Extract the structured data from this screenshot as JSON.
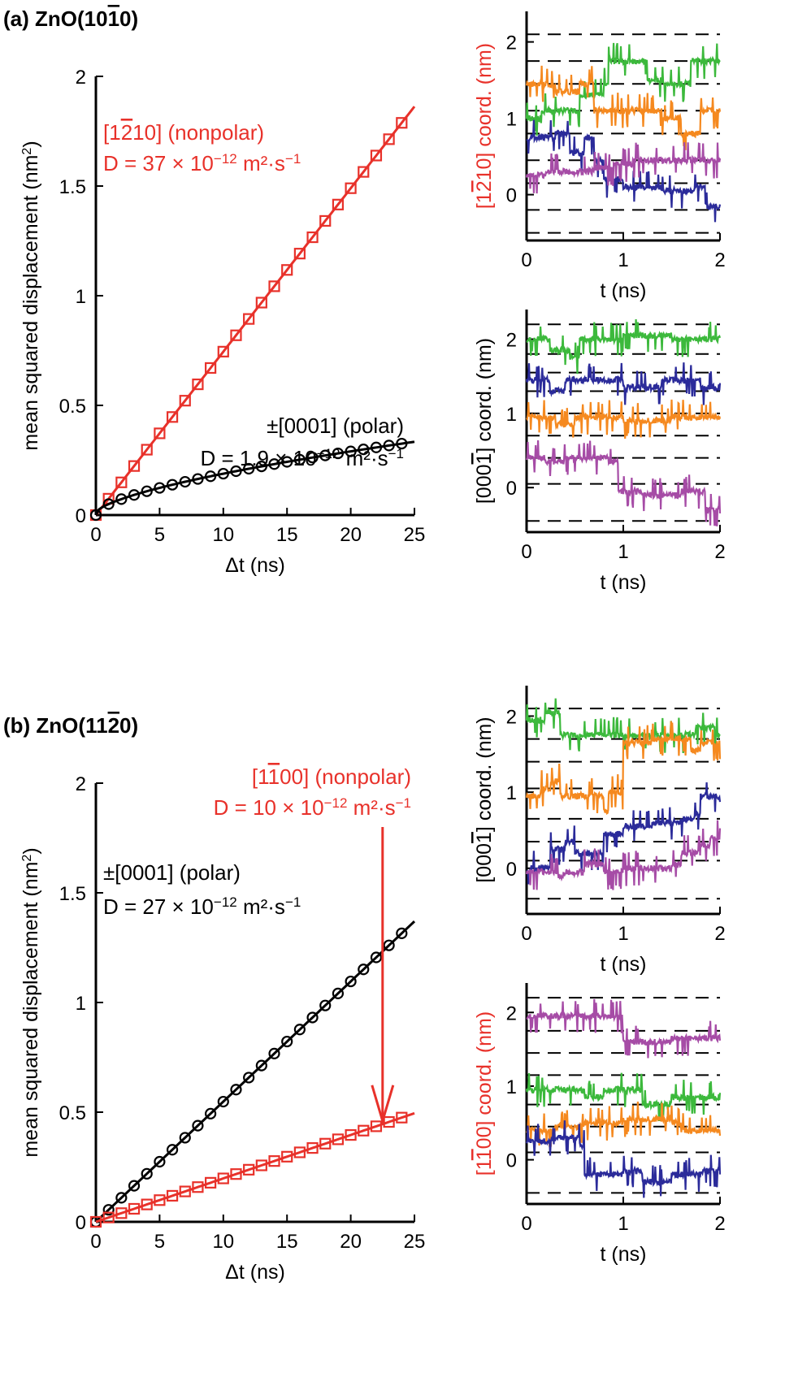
{
  "colors": {
    "red": "#e8312a",
    "black": "#000000",
    "green": "#3cb93c",
    "orange": "#f5891f",
    "navy": "#2b2b9a",
    "purple": "#a64ca6"
  },
  "panel_a": {
    "label": "(a) ZnO(10",
    "label_bar": "1",
    "label_tail": "0)"
  },
  "panel_b": {
    "label": "(b) ZnO(11",
    "label_bar": "2",
    "label_tail": "0)"
  },
  "chart_data": [
    {
      "id": "a-msd",
      "type": "line",
      "xlabel": "Δt (ns)",
      "ylabel": "mean squared displacement (nm²)",
      "xlim": [
        0,
        25
      ],
      "ylim": [
        0,
        2
      ],
      "xticks": [
        0,
        5,
        10,
        15,
        20,
        25
      ],
      "yticks": [
        0,
        0.5,
        1,
        1.5,
        2
      ],
      "series": [
        {
          "name": "[1-210] (nonpolar)",
          "color": "red",
          "marker": "square",
          "slope": 0.0745,
          "intercept": 0.0,
          "fit_end": 25,
          "marker_x": [
            0,
            1,
            2,
            3,
            4,
            5,
            6,
            7,
            8,
            9,
            10,
            11,
            12,
            13,
            14,
            15,
            16,
            17,
            18,
            19,
            20,
            21,
            22,
            23,
            24
          ]
        },
        {
          "name": "±[0001] (polar)",
          "color": "black",
          "marker": "circle",
          "fit": "sqrt",
          "amp": 0.025,
          "marker_x": [
            0,
            1,
            2,
            3,
            4,
            5,
            6,
            7,
            8,
            9,
            10,
            11,
            12,
            13,
            14,
            15,
            16,
            17,
            18,
            19,
            20,
            21,
            22,
            23,
            24
          ]
        }
      ],
      "annotations": [
        {
          "lines": [
            "[1",
            "2",
            "10] (nonpolar)"
          ],
          "color": "red"
        },
        {
          "text": "D = 37 × 10",
          "sup": "−12",
          "tail": " m²·s",
          "sup2": "−1",
          "color": "red"
        },
        {
          "text": "±[0001] (polar)",
          "color": "black"
        },
        {
          "text": "D = 1.9 × 10",
          "sup": "−12",
          "tail": " m²·s",
          "sup2": "−1",
          "color": "black"
        }
      ]
    },
    {
      "id": "a-traj-top",
      "type": "line",
      "xlabel": "t (ns)",
      "ylabel": "[1-210] coord. (nm)",
      "ylabel_color": "red",
      "xlim": [
        0,
        2
      ],
      "ylim": [
        -0.6,
        2.4
      ],
      "xticks": [
        0,
        1,
        2
      ],
      "yticks": [
        0,
        1,
        2
      ],
      "dashed_levels": [
        -0.5,
        -0.2,
        0.15,
        0.45,
        0.8,
        1.1,
        1.45,
        1.75,
        2.1
      ],
      "series": [
        {
          "name": "green",
          "color": "green",
          "steps": [
            [
              0,
              1.0
            ],
            [
              0.15,
              1.1
            ],
            [
              0.55,
              1.3
            ],
            [
              0.8,
              1.45
            ],
            [
              0.85,
              1.75
            ],
            [
              1.25,
              1.5
            ],
            [
              1.4,
              1.45
            ],
            [
              1.7,
              1.75
            ],
            [
              2,
              1.75
            ]
          ]
        },
        {
          "name": "orange",
          "color": "orange",
          "steps": [
            [
              0,
              1.45
            ],
            [
              0.3,
              1.35
            ],
            [
              0.55,
              1.45
            ],
            [
              0.7,
              1.1
            ],
            [
              0.85,
              1.1
            ],
            [
              1.2,
              1.1
            ],
            [
              1.4,
              1.0
            ],
            [
              1.6,
              0.8
            ],
            [
              1.8,
              1.1
            ],
            [
              2,
              1.1
            ]
          ]
        },
        {
          "name": "navy",
          "color": "navy",
          "steps": [
            [
              0,
              0.75
            ],
            [
              0.3,
              0.8
            ],
            [
              0.45,
              0.55
            ],
            [
              0.6,
              0.75
            ],
            [
              0.7,
              0.45
            ],
            [
              0.8,
              0.2
            ],
            [
              1.0,
              0.1
            ],
            [
              1.2,
              0.1
            ],
            [
              1.4,
              0.05
            ],
            [
              1.75,
              0.1
            ],
            [
              1.85,
              -0.15
            ],
            [
              2,
              -0.1
            ]
          ]
        },
        {
          "name": "purple",
          "color": "purple",
          "steps": [
            [
              0,
              0.25
            ],
            [
              0.2,
              0.3
            ],
            [
              0.5,
              0.3
            ],
            [
              0.7,
              0.35
            ],
            [
              0.9,
              0.4
            ],
            [
              1.1,
              0.45
            ],
            [
              1.5,
              0.45
            ],
            [
              2,
              0.45
            ]
          ]
        }
      ]
    },
    {
      "id": "a-traj-bottom",
      "type": "line",
      "xlabel": "t (ns)",
      "ylabel": "[000-1] coord. (nm)",
      "ylabel_color": "black",
      "xlim": [
        0,
        2
      ],
      "ylim": [
        -0.6,
        2.4
      ],
      "xticks": [
        0,
        1,
        2
      ],
      "yticks": [
        0,
        1,
        2
      ],
      "dashed_levels": [
        -0.45,
        0.05,
        0.4,
        0.7,
        1.0,
        1.3,
        1.55,
        1.8,
        2.2
      ],
      "series": [
        {
          "name": "green",
          "color": "green",
          "steps": [
            [
              0,
              2.0
            ],
            [
              0.25,
              1.85
            ],
            [
              0.45,
              1.75
            ],
            [
              0.55,
              2.0
            ],
            [
              1.0,
              2.05
            ],
            [
              1.5,
              2.0
            ],
            [
              2,
              2.0
            ]
          ]
        },
        {
          "name": "navy",
          "color": "navy",
          "steps": [
            [
              0,
              1.45
            ],
            [
              0.25,
              1.3
            ],
            [
              0.4,
              1.45
            ],
            [
              1.0,
              1.35
            ],
            [
              1.4,
              1.45
            ],
            [
              1.8,
              1.35
            ],
            [
              2,
              1.4
            ]
          ]
        },
        {
          "name": "orange",
          "color": "orange",
          "steps": [
            [
              0,
              0.95
            ],
            [
              0.3,
              0.85
            ],
            [
              0.5,
              0.95
            ],
            [
              1.0,
              0.9
            ],
            [
              1.5,
              0.95
            ],
            [
              2,
              0.95
            ]
          ]
        },
        {
          "name": "purple",
          "color": "purple",
          "steps": [
            [
              0,
              0.4
            ],
            [
              0.2,
              0.35
            ],
            [
              0.4,
              0.4
            ],
            [
              0.85,
              0.35
            ],
            [
              0.95,
              -0.05
            ],
            [
              1.2,
              -0.1
            ],
            [
              1.6,
              -0.05
            ],
            [
              1.85,
              -0.3
            ],
            [
              2,
              -0.35
            ]
          ]
        }
      ]
    },
    {
      "id": "b-msd",
      "type": "line",
      "xlabel": "Δt (ns)",
      "ylabel": "mean squared displacement (nm²)",
      "xlim": [
        0,
        25
      ],
      "ylim": [
        0,
        2
      ],
      "xticks": [
        0,
        5,
        10,
        15,
        20,
        25
      ],
      "yticks": [
        0,
        0.5,
        1,
        1.5,
        2
      ],
      "series": [
        {
          "name": "±[0001] (polar)",
          "color": "black",
          "marker": "circle",
          "slope": 0.0548,
          "intercept": 0.0,
          "fit_end": 25,
          "marker_x": [
            0,
            1,
            2,
            3,
            4,
            5,
            6,
            7,
            8,
            9,
            10,
            11,
            12,
            13,
            14,
            15,
            16,
            17,
            18,
            19,
            20,
            21,
            22,
            23,
            24
          ]
        },
        {
          "name": "[1-100] (nonpolar)",
          "color": "red",
          "marker": "square",
          "slope": 0.0198,
          "intercept": 0.0,
          "fit_end": 25,
          "marker_x": [
            0,
            1,
            2,
            3,
            4,
            5,
            6,
            7,
            8,
            9,
            10,
            11,
            12,
            13,
            14,
            15,
            16,
            17,
            18,
            19,
            20,
            21,
            22,
            23,
            24
          ]
        }
      ],
      "annotations": [
        {
          "lines": [
            "[1",
            "1",
            "00] (nonpolar)"
          ],
          "color": "red"
        },
        {
          "text": "D = 10 × 10",
          "sup": "−12",
          "tail": " m²·s",
          "sup2": "−1",
          "color": "red"
        },
        {
          "text": "±[0001] (polar)",
          "color": "black"
        },
        {
          "text": "D = 27 × 10",
          "sup": "−12",
          "tail": " m²·s",
          "sup2": "−1",
          "color": "black"
        }
      ],
      "arrow": {
        "x": 22.5,
        "y_from": 1.8,
        "y_to": 0.46
      }
    },
    {
      "id": "b-traj-top",
      "type": "line",
      "xlabel": "t (ns)",
      "ylabel": "[000-1] coord. (nm)",
      "ylabel_color": "black",
      "xlim": [
        0,
        2
      ],
      "ylim": [
        -0.6,
        2.4
      ],
      "xticks": [
        0,
        1,
        2
      ],
      "yticks": [
        0,
        1,
        2
      ],
      "dashed_levels": [
        -0.4,
        0.1,
        0.35,
        0.65,
        1.05,
        1.4,
        1.7,
        2.1
      ],
      "series": [
        {
          "name": "green",
          "color": "green",
          "steps": [
            [
              0,
              1.95
            ],
            [
              0.2,
              2.05
            ],
            [
              0.35,
              1.75
            ],
            [
              1.0,
              1.75
            ],
            [
              1.5,
              1.75
            ],
            [
              1.75,
              1.85
            ],
            [
              1.95,
              1.75
            ],
            [
              2,
              1.75
            ]
          ]
        },
        {
          "name": "orange",
          "color": "orange",
          "steps": [
            [
              0,
              0.95
            ],
            [
              0.15,
              1.05
            ],
            [
              0.25,
              1.15
            ],
            [
              0.35,
              0.95
            ],
            [
              0.7,
              0.95
            ],
            [
              0.8,
              0.75
            ],
            [
              0.85,
              1.0
            ],
            [
              1.0,
              1.65
            ],
            [
              1.3,
              1.7
            ],
            [
              1.7,
              1.55
            ],
            [
              1.8,
              1.65
            ],
            [
              2,
              1.45
            ]
          ]
        },
        {
          "name": "navy",
          "color": "navy",
          "steps": [
            [
              0,
              0.0
            ],
            [
              0.25,
              0.25
            ],
            [
              0.4,
              0.35
            ],
            [
              0.5,
              0.2
            ],
            [
              0.8,
              0.45
            ],
            [
              1.0,
              0.55
            ],
            [
              1.3,
              0.6
            ],
            [
              1.6,
              0.65
            ],
            [
              1.75,
              0.7
            ],
            [
              1.8,
              0.95
            ],
            [
              2,
              0.9
            ]
          ]
        },
        {
          "name": "purple",
          "color": "purple",
          "steps": [
            [
              0,
              -0.05
            ],
            [
              0.3,
              -0.1
            ],
            [
              0.4,
              -0.05
            ],
            [
              0.6,
              0.05
            ],
            [
              0.8,
              -0.05
            ],
            [
              1.0,
              0.0
            ],
            [
              1.5,
              0.05
            ],
            [
              1.6,
              0.2
            ],
            [
              1.8,
              0.3
            ],
            [
              1.9,
              0.4
            ],
            [
              2,
              0.5
            ]
          ]
        }
      ]
    },
    {
      "id": "b-traj-bottom",
      "type": "line",
      "xlabel": "t (ns)",
      "ylabel": "[1-100] coord. (nm)",
      "ylabel_color": "red",
      "xlim": [
        0,
        2
      ],
      "ylim": [
        -0.6,
        2.4
      ],
      "xticks": [
        0,
        1,
        2
      ],
      "yticks": [
        0,
        1,
        2
      ],
      "dashed_levels": [
        -0.45,
        0.1,
        0.45,
        0.75,
        1.15,
        1.45,
        1.75,
        2.2
      ],
      "series": [
        {
          "name": "purple",
          "color": "purple",
          "steps": [
            [
              0,
              1.95
            ],
            [
              0.5,
              1.95
            ],
            [
              0.95,
              1.95
            ],
            [
              1.0,
              1.6
            ],
            [
              1.5,
              1.65
            ],
            [
              2,
              1.6
            ]
          ]
        },
        {
          "name": "green",
          "color": "green",
          "steps": [
            [
              0,
              0.95
            ],
            [
              0.3,
              0.95
            ],
            [
              0.5,
              0.95
            ],
            [
              0.6,
              0.85
            ],
            [
              0.8,
              0.95
            ],
            [
              1.2,
              0.75
            ],
            [
              1.5,
              0.85
            ],
            [
              2,
              0.9
            ]
          ]
        },
        {
          "name": "orange",
          "color": "orange",
          "steps": [
            [
              0,
              0.4
            ],
            [
              0.3,
              0.45
            ],
            [
              0.6,
              0.5
            ],
            [
              1.0,
              0.55
            ],
            [
              1.5,
              0.5
            ],
            [
              1.6,
              0.4
            ],
            [
              2,
              0.35
            ]
          ]
        },
        {
          "name": "navy",
          "color": "navy",
          "steps": [
            [
              0,
              0.25
            ],
            [
              0.3,
              0.3
            ],
            [
              0.55,
              0.2
            ],
            [
              0.6,
              -0.2
            ],
            [
              1.0,
              -0.15
            ],
            [
              1.2,
              -0.3
            ],
            [
              1.5,
              -0.2
            ],
            [
              1.8,
              -0.15
            ],
            [
              2,
              -0.2
            ]
          ]
        }
      ]
    }
  ]
}
